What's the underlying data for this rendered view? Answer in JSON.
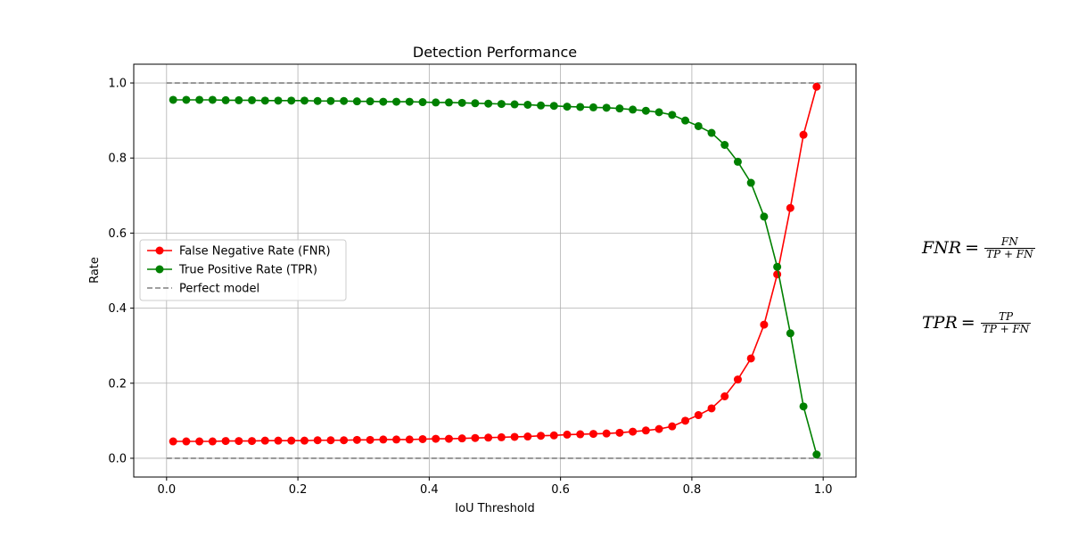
{
  "chart_data": {
    "type": "line",
    "title": "Detection Performance",
    "xlabel": "IoU Threshold",
    "ylabel": "Rate",
    "xlim": [
      -0.05,
      1.05
    ],
    "ylim": [
      -0.05,
      1.05
    ],
    "xticks": [
      0.0,
      0.2,
      0.4,
      0.6,
      0.8,
      1.0
    ],
    "xtick_labels": [
      "0.0",
      "0.2",
      "0.4",
      "0.6",
      "0.8",
      "1.0"
    ],
    "yticks": [
      0.0,
      0.2,
      0.4,
      0.6,
      0.8,
      1.0
    ],
    "ytick_labels": [
      "0.0",
      "0.2",
      "0.4",
      "0.6",
      "0.8",
      "1.0"
    ],
    "grid": true,
    "legend_position": "center-left",
    "x": [
      0.01,
      0.03,
      0.05,
      0.07,
      0.09,
      0.11,
      0.13,
      0.15,
      0.17,
      0.19,
      0.21,
      0.23,
      0.25,
      0.27,
      0.29,
      0.31,
      0.33,
      0.35,
      0.37,
      0.39,
      0.41,
      0.43,
      0.45,
      0.47,
      0.49,
      0.51,
      0.53,
      0.55,
      0.57,
      0.59,
      0.61,
      0.63,
      0.65,
      0.67,
      0.69,
      0.71,
      0.73,
      0.75,
      0.77,
      0.79,
      0.81,
      0.83,
      0.85,
      0.87,
      0.89,
      0.91,
      0.93,
      0.95,
      0.97,
      0.99
    ],
    "series": [
      {
        "name": "False Negative Rate (FNR)",
        "color": "#ff0000",
        "marker": "circle",
        "values": [
          0.045,
          0.045,
          0.045,
          0.045,
          0.046,
          0.046,
          0.046,
          0.047,
          0.047,
          0.047,
          0.047,
          0.048,
          0.048,
          0.048,
          0.049,
          0.049,
          0.05,
          0.05,
          0.05,
          0.051,
          0.052,
          0.052,
          0.053,
          0.054,
          0.055,
          0.056,
          0.057,
          0.058,
          0.06,
          0.061,
          0.063,
          0.064,
          0.065,
          0.066,
          0.068,
          0.071,
          0.074,
          0.078,
          0.085,
          0.1,
          0.115,
          0.133,
          0.165,
          0.21,
          0.266,
          0.356,
          0.49,
          0.667,
          0.862,
          0.99
        ]
      },
      {
        "name": "True Positive Rate (TPR)",
        "color": "#008000",
        "marker": "circle",
        "values": [
          0.955,
          0.955,
          0.955,
          0.955,
          0.954,
          0.954,
          0.954,
          0.953,
          0.953,
          0.953,
          0.953,
          0.952,
          0.952,
          0.952,
          0.951,
          0.951,
          0.95,
          0.95,
          0.95,
          0.949,
          0.948,
          0.948,
          0.947,
          0.946,
          0.945,
          0.944,
          0.943,
          0.942,
          0.94,
          0.939,
          0.937,
          0.936,
          0.935,
          0.934,
          0.932,
          0.929,
          0.926,
          0.922,
          0.915,
          0.9,
          0.885,
          0.867,
          0.835,
          0.79,
          0.734,
          0.644,
          0.51,
          0.333,
          0.138,
          0.01
        ]
      },
      {
        "name": "Perfect model",
        "color": "#808080",
        "style": "dashed",
        "segments": [
          {
            "x": [
              0.0,
              1.0
            ],
            "y": [
              1.0,
              1.0
            ]
          },
          {
            "x": [
              0.0,
              1.0
            ],
            "y": [
              0.0,
              0.0
            ]
          }
        ]
      }
    ],
    "annotations": [
      {
        "lhs": "FNR",
        "num": "FN",
        "den": "TP + FN"
      },
      {
        "lhs": "TPR",
        "num": "TP",
        "den": "TP + FN"
      }
    ]
  }
}
